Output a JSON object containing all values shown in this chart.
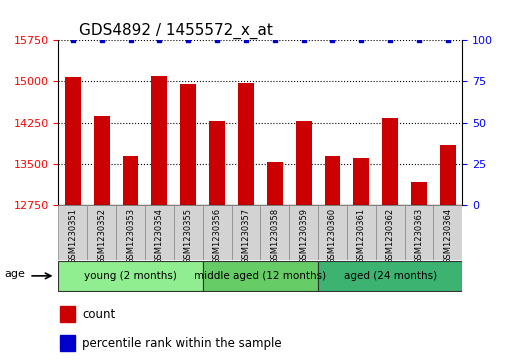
{
  "title": "GDS4892 / 1455572_x_at",
  "samples": [
    "GSM1230351",
    "GSM1230352",
    "GSM1230353",
    "GSM1230354",
    "GSM1230355",
    "GSM1230356",
    "GSM1230357",
    "GSM1230358",
    "GSM1230359",
    "GSM1230360",
    "GSM1230361",
    "GSM1230362",
    "GSM1230363",
    "GSM1230364"
  ],
  "counts": [
    15075,
    14375,
    13650,
    15100,
    14950,
    14275,
    14975,
    13525,
    14275,
    13650,
    13600,
    14325,
    13175,
    13850
  ],
  "percentiles": [
    100,
    100,
    100,
    100,
    100,
    100,
    100,
    100,
    100,
    100,
    100,
    100,
    100,
    100
  ],
  "groups": [
    {
      "label": "young (2 months)",
      "start": 0,
      "end": 4,
      "color": "#90EE90"
    },
    {
      "label": "middle aged (12 months)",
      "start": 5,
      "end": 8,
      "color": "#66CC66"
    },
    {
      "label": "aged (24 months)",
      "start": 9,
      "end": 13,
      "color": "#3CB371"
    }
  ],
  "ylim_left": [
    12750,
    15750
  ],
  "ylim_right": [
    0,
    100
  ],
  "yticks_left": [
    12750,
    13500,
    14250,
    15000,
    15750
  ],
  "yticks_right": [
    0,
    25,
    50,
    75,
    100
  ],
  "bar_color": "#CC0000",
  "dot_color": "#0000CC",
  "bar_width": 0.55,
  "title_fontsize": 11,
  "tick_fontsize": 8,
  "legend_fontsize": 8.5,
  "xtick_fontsize": 6
}
